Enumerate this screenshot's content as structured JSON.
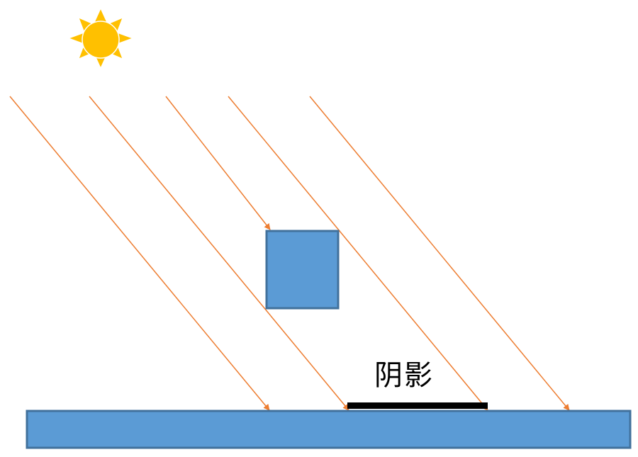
{
  "diagram": {
    "shadow_label": "阴影",
    "icons": {
      "sun": "sun-icon"
    },
    "colors": {
      "background": "#ffffff",
      "sun_body": "#FFC000",
      "sun_rays": "#FFC000",
      "light_ray": "#ED7D31",
      "block_fill": "#5B9BD5",
      "block_stroke": "#41719C",
      "ground_fill": "#5B9BD5",
      "ground_stroke": "#41719C",
      "shadow": "#000000"
    },
    "light_ray_count": 5
  }
}
